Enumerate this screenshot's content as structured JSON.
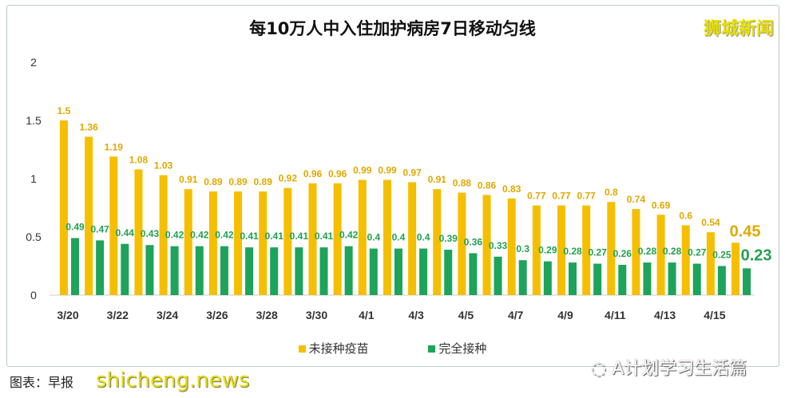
{
  "chart_data": {
    "type": "bar",
    "title": "每10万人中入住加护病房7日移动匀线",
    "categories": [
      "3/20",
      "3/21",
      "3/22",
      "3/23",
      "3/24",
      "3/25",
      "3/26",
      "3/27",
      "3/28",
      "3/29",
      "3/30",
      "3/31",
      "4/1",
      "4/2",
      "4/3",
      "4/4",
      "4/5",
      "4/6",
      "4/7",
      "4/8",
      "4/9",
      "4/10",
      "4/11",
      "4/12",
      "4/13",
      "4/14",
      "4/15",
      "4/16"
    ],
    "x_tick_labels": [
      "3/20",
      "3/22",
      "3/24",
      "3/26",
      "3/28",
      "3/30",
      "4/1",
      "4/3",
      "4/5",
      "4/7",
      "4/9",
      "4/11",
      "4/13",
      "4/15"
    ],
    "y_ticks": [
      "0",
      "0.5",
      "1",
      "1.5",
      "2"
    ],
    "ylim": [
      0,
      2
    ],
    "grid": false,
    "legend": "bottom",
    "series": [
      {
        "name": "未接种疫苗",
        "color": "#f5bf00",
        "label_color": "#e0a800",
        "values": [
          1.5,
          1.36,
          1.19,
          1.08,
          1.03,
          0.91,
          0.89,
          0.89,
          0.89,
          0.92,
          0.96,
          0.96,
          0.99,
          0.99,
          0.97,
          0.91,
          0.88,
          0.86,
          0.83,
          0.77,
          0.77,
          0.77,
          0.8,
          0.74,
          0.69,
          0.6,
          0.54,
          0.45
        ]
      },
      {
        "name": "完全接种",
        "color": "#1ea35a",
        "label_color": "#22a050",
        "values": [
          0.49,
          0.47,
          0.44,
          0.43,
          0.42,
          0.42,
          0.42,
          0.41,
          0.41,
          0.41,
          0.41,
          0.42,
          0.4,
          0.4,
          0.4,
          0.39,
          0.36,
          0.33,
          0.3,
          0.29,
          0.28,
          0.27,
          0.26,
          0.28,
          0.28,
          0.27,
          0.25,
          0.23
        ]
      }
    ]
  },
  "logo": "狮城新闻",
  "source": "图表：早报",
  "watermark": "shicheng.news",
  "wechat": "A计划学习生活篇"
}
